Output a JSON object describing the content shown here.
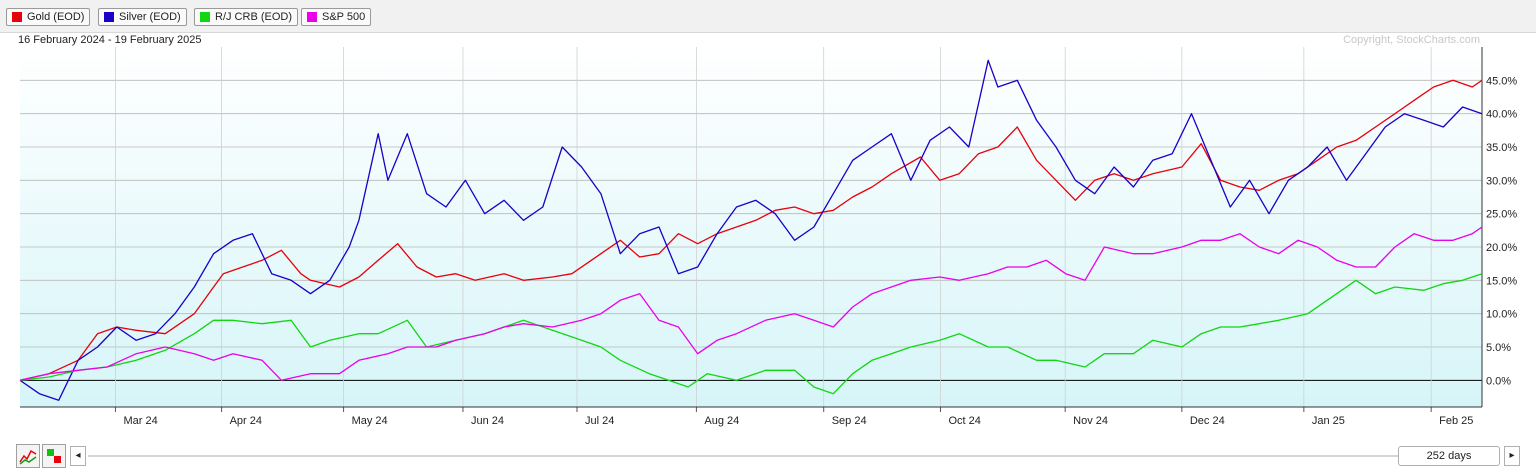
{
  "legend": [
    {
      "label": "Gold (EOD)",
      "color": "#e8000b"
    },
    {
      "label": "Silver (EOD)",
      "color": "#1a00c8"
    },
    {
      "label": "R/J CRB (EOD)",
      "color": "#11d611"
    },
    {
      "label": "S&P 500",
      "color": "#ea00ea"
    }
  ],
  "date_range": "16 February 2024 - 19 February 2025",
  "copyright": "Copyright, StockCharts.com",
  "nav": {
    "days_label": "252 days",
    "left_arrow": "◂",
    "right_arrow": "▸"
  },
  "chart_data": {
    "type": "line",
    "ylim": [
      -4,
      50
    ],
    "y_ticks": [
      0,
      5,
      10,
      15,
      20,
      25,
      30,
      35,
      40,
      45
    ],
    "y_tick_labels": [
      "0.0%",
      "5.0%",
      "10.0%",
      "15.0%",
      "20.0%",
      "25.0%",
      "30.0%",
      "35.0%",
      "40.0%",
      "45.0%"
    ],
    "x_ticks": [
      {
        "label": "Mar 24",
        "x": 0.0986
      },
      {
        "label": "Apr 24",
        "x": 0.2082
      },
      {
        "label": "May 24",
        "x": 0.3342
      },
      {
        "label": "Jun 24",
        "x": 0.4575
      },
      {
        "label": "Jul 24",
        "x": 0.5753
      },
      {
        "label": "Aug 24",
        "x": 0.6986
      },
      {
        "label": "Sep 24",
        "x": 0.8301
      },
      {
        "label": "Oct 24",
        "x": 0.9507
      },
      {
        "label": "Nov 24",
        "x": 1.0795
      },
      {
        "label": "Dec 24",
        "x": 1.2
      },
      {
        "label": "Jan 25",
        "x": 1.326
      },
      {
        "label": "Feb 25",
        "x": 1.4575
      }
    ],
    "xlim": [
      0,
      1.51
    ],
    "x_unit": "years since 16 Feb 2024",
    "grid": true,
    "series": [
      {
        "name": "Gold (EOD)",
        "color": "#e8000b",
        "x": [
          0,
          0.03,
          0.06,
          0.08,
          0.1,
          0.12,
          0.15,
          0.18,
          0.2,
          0.21,
          0.23,
          0.25,
          0.27,
          0.29,
          0.3,
          0.33,
          0.35,
          0.37,
          0.39,
          0.41,
          0.43,
          0.45,
          0.47,
          0.5,
          0.52,
          0.55,
          0.57,
          0.6,
          0.62,
          0.64,
          0.66,
          0.68,
          0.7,
          0.72,
          0.74,
          0.76,
          0.78,
          0.8,
          0.82,
          0.84,
          0.86,
          0.88,
          0.9,
          0.93,
          0.95,
          0.97,
          0.99,
          1.01,
          1.03,
          1.05,
          1.07,
          1.09,
          1.11,
          1.13,
          1.15,
          1.17,
          1.2,
          1.22,
          1.24,
          1.26,
          1.28,
          1.3,
          1.32,
          1.34,
          1.36,
          1.38,
          1.4,
          1.42,
          1.44,
          1.46,
          1.48,
          1.5,
          1.51
        ],
        "y": [
          0,
          1,
          3,
          7,
          8,
          7.5,
          7,
          10,
          14,
          16,
          17,
          18,
          19.5,
          16,
          15,
          14,
          15.5,
          18,
          20.5,
          17,
          15.5,
          16,
          15,
          16,
          15,
          15.5,
          16,
          19,
          21,
          18.5,
          19,
          22,
          20.5,
          22,
          23,
          24,
          25.5,
          26,
          25,
          25.5,
          27.5,
          29,
          31,
          33.5,
          30,
          31,
          34,
          35,
          38,
          33,
          30,
          27,
          30,
          31,
          30,
          31,
          32,
          35.5,
          30,
          29,
          28.5,
          30,
          31,
          33,
          35,
          36,
          38,
          40,
          42,
          44,
          45,
          44,
          45
        ]
      },
      {
        "name": "Silver (EOD)",
        "color": "#1a00c8",
        "x": [
          0,
          0.02,
          0.04,
          0.06,
          0.08,
          0.1,
          0.12,
          0.14,
          0.16,
          0.18,
          0.2,
          0.22,
          0.24,
          0.26,
          0.28,
          0.3,
          0.32,
          0.34,
          0.35,
          0.37,
          0.38,
          0.4,
          0.42,
          0.44,
          0.46,
          0.48,
          0.5,
          0.52,
          0.54,
          0.56,
          0.58,
          0.6,
          0.62,
          0.64,
          0.66,
          0.68,
          0.7,
          0.72,
          0.74,
          0.76,
          0.78,
          0.8,
          0.82,
          0.84,
          0.86,
          0.88,
          0.9,
          0.92,
          0.94,
          0.96,
          0.98,
          1.0,
          1.01,
          1.03,
          1.05,
          1.07,
          1.09,
          1.11,
          1.13,
          1.15,
          1.17,
          1.19,
          1.21,
          1.23,
          1.25,
          1.27,
          1.29,
          1.31,
          1.33,
          1.35,
          1.37,
          1.39,
          1.41,
          1.43,
          1.45,
          1.47,
          1.49,
          1.51
        ],
        "y": [
          0,
          -2,
          -3,
          3,
          5,
          8,
          6,
          7,
          10,
          14,
          19,
          21,
          22,
          16,
          15,
          13,
          15,
          20,
          24,
          37,
          30,
          37,
          28,
          26,
          30,
          25,
          27,
          24,
          26,
          35,
          32,
          28,
          19,
          22,
          23,
          16,
          17,
          22,
          26,
          27,
          25,
          21,
          23,
          28,
          33,
          35,
          37,
          30,
          36,
          38,
          35,
          48,
          44,
          45,
          39,
          35,
          30,
          28,
          32,
          29,
          33,
          34,
          40,
          33,
          26,
          30,
          25,
          30,
          32,
          35,
          30,
          34,
          38,
          40,
          39,
          38,
          41,
          40
        ]
      },
      {
        "name": "R/J CRB (EOD)",
        "color": "#11d611",
        "x": [
          0,
          0.03,
          0.06,
          0.09,
          0.12,
          0.15,
          0.18,
          0.2,
          0.22,
          0.25,
          0.28,
          0.3,
          0.32,
          0.35,
          0.37,
          0.4,
          0.42,
          0.45,
          0.48,
          0.5,
          0.52,
          0.55,
          0.58,
          0.6,
          0.62,
          0.65,
          0.67,
          0.69,
          0.71,
          0.74,
          0.77,
          0.8,
          0.82,
          0.84,
          0.86,
          0.88,
          0.9,
          0.92,
          0.95,
          0.97,
          1.0,
          1.02,
          1.05,
          1.07,
          1.1,
          1.12,
          1.15,
          1.17,
          1.2,
          1.22,
          1.24,
          1.26,
          1.28,
          1.3,
          1.33,
          1.35,
          1.38,
          1.4,
          1.42,
          1.45,
          1.47,
          1.49,
          1.51
        ],
        "y": [
          0,
          0.5,
          1.5,
          2,
          3,
          4.5,
          7,
          9,
          9,
          8.5,
          9,
          5,
          6,
          7,
          7,
          9,
          5,
          6,
          7,
          8,
          9,
          7.5,
          6,
          5,
          3,
          1,
          0,
          -1,
          1,
          0,
          1.5,
          1.5,
          -1,
          -2,
          1,
          3,
          4,
          5,
          6,
          7,
          5,
          5,
          3,
          3,
          2,
          4,
          4,
          6,
          5,
          7,
          8,
          8,
          8.5,
          9,
          10,
          12,
          15,
          13,
          14,
          13.5,
          14.5,
          15,
          16
        ]
      },
      {
        "name": "S&P 500",
        "color": "#ea00ea",
        "x": [
          0,
          0.03,
          0.06,
          0.09,
          0.12,
          0.15,
          0.18,
          0.2,
          0.22,
          0.25,
          0.27,
          0.3,
          0.33,
          0.35,
          0.38,
          0.4,
          0.43,
          0.45,
          0.48,
          0.5,
          0.52,
          0.55,
          0.58,
          0.6,
          0.62,
          0.64,
          0.66,
          0.68,
          0.7,
          0.72,
          0.74,
          0.77,
          0.8,
          0.82,
          0.84,
          0.86,
          0.88,
          0.9,
          0.92,
          0.95,
          0.97,
          1.0,
          1.02,
          1.04,
          1.06,
          1.08,
          1.1,
          1.12,
          1.15,
          1.17,
          1.2,
          1.22,
          1.24,
          1.26,
          1.28,
          1.3,
          1.32,
          1.34,
          1.36,
          1.38,
          1.4,
          1.42,
          1.44,
          1.46,
          1.48,
          1.5,
          1.51
        ],
        "y": [
          0,
          1,
          1.5,
          2,
          4,
          5,
          4,
          3,
          4,
          3,
          0,
          1,
          1,
          3,
          4,
          5,
          5,
          6,
          7,
          8,
          8.5,
          8,
          9,
          10,
          12,
          13,
          9,
          8,
          4,
          6,
          7,
          9,
          10,
          9,
          8,
          11,
          13,
          14,
          15,
          15.5,
          15,
          16,
          17,
          17,
          18,
          16,
          15,
          20,
          19,
          19,
          20,
          21,
          21,
          22,
          20,
          19,
          21,
          20,
          18,
          17,
          17,
          20,
          22,
          21,
          21,
          22,
          23
        ]
      }
    ]
  }
}
